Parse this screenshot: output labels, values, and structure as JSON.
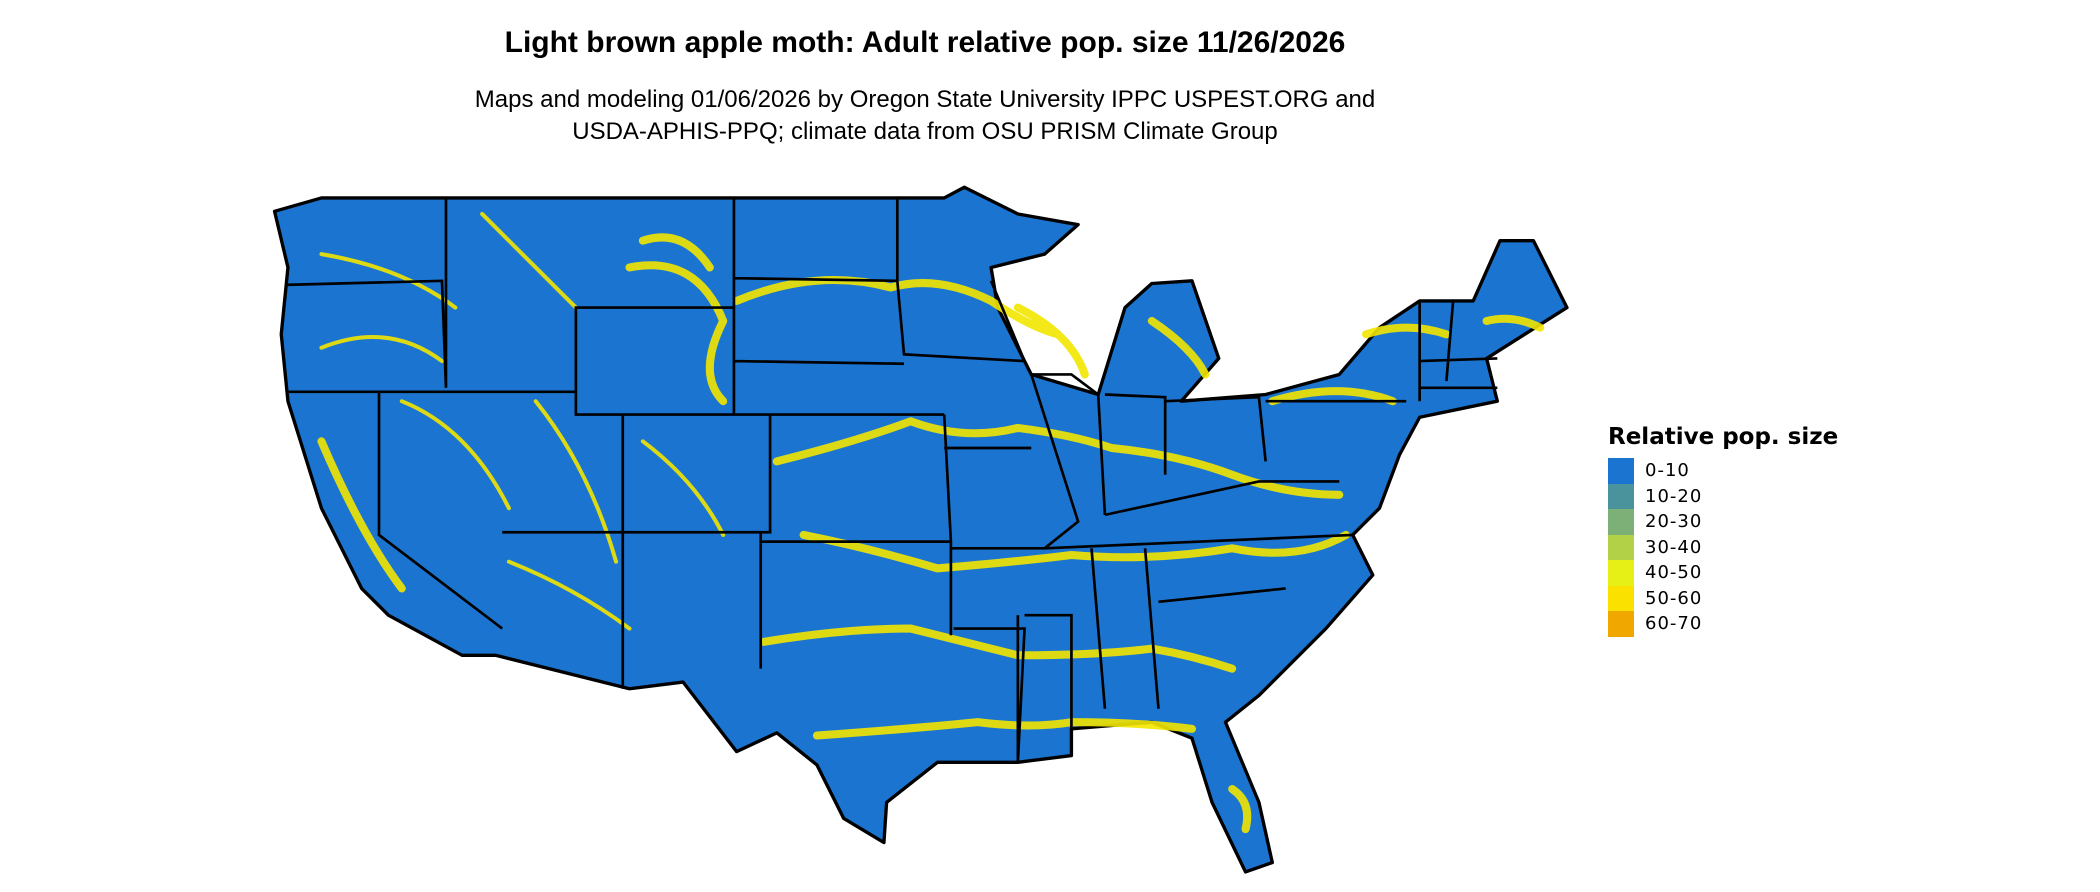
{
  "title": "Light brown apple moth: Adult relative pop. size 11/26/2026",
  "subtitle_line1": "Maps and modeling 01/06/2026 by Oregon State University IPPC USPEST.ORG and",
  "subtitle_line2": "USDA-APHIS-PPQ; climate data from OSU PRISM Climate Group",
  "legend": {
    "title": "Relative pop. size",
    "items": [
      {
        "label": "0-10",
        "color": "#1b75d0"
      },
      {
        "label": "10-20",
        "color": "#4a929c"
      },
      {
        "label": "20-30",
        "color": "#7db077"
      },
      {
        "label": "30-40",
        "color": "#b2d147"
      },
      {
        "label": "40-50",
        "color": "#e7f016"
      },
      {
        "label": "50-60",
        "color": "#fbe100"
      },
      {
        "label": "60-70",
        "color": "#f0a800"
      }
    ]
  },
  "map": {
    "region": "Contiguous United States",
    "base_color": "#1b75d0",
    "highlight_color": "#f2e600",
    "border_color": "#000000"
  }
}
